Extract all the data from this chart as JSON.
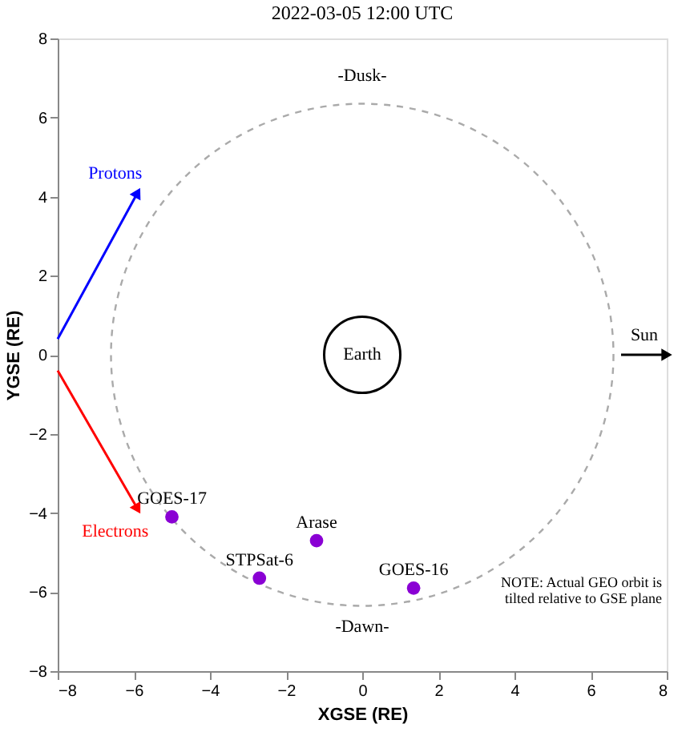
{
  "chart_data": {
    "type": "scatter",
    "title": "2022-03-05 12:00 UTC",
    "xlabel": "XGSE (RE)",
    "ylabel": "YGSE (RE)",
    "xlim": [
      -8,
      8
    ],
    "ylim": [
      -8,
      8
    ],
    "xticks": [
      -8,
      -6,
      -4,
      -2,
      0,
      2,
      4,
      6,
      8
    ],
    "yticks": [
      -8,
      -6,
      -4,
      -2,
      0,
      2,
      4,
      6,
      8
    ],
    "grid": false,
    "series": [
      {
        "color": "#8a00d4",
        "marker": "circle",
        "x": [
          -5.0,
          -2.7,
          -1.2,
          1.35
        ],
        "values": [
          -4.1,
          -5.65,
          -4.7,
          -5.9
        ]
      },
      {
        "type": "line",
        "name": "Protons",
        "color": "#0000ff",
        "line_style": "solid",
        "marker": "triangle",
        "x": [
          -8,
          -5.9
        ],
        "values": [
          0.4,
          4.1
        ]
      },
      {
        "type": "line",
        "name": "Electrons",
        "color": "#ff0000",
        "line_style": "solid",
        "marker": "triangle",
        "x": [
          -8,
          -5.9
        ],
        "values": [
          -0.4,
          -3.9
        ]
      },
      {
        "type": "line",
        "name": "Sun",
        "color": "#000000",
        "line_style": "solid",
        "marker": "triangle",
        "x": [
          6.8,
          8
        ],
        "values": [
          0,
          0
        ]
      }
    ],
    "annotations": [
      {
        "text": "GOES-17",
        "x": -5.0,
        "y": -4.1
      },
      {
        "text": "STPSat-6",
        "x": -2.7,
        "y": -5.65
      },
      {
        "text": "Arase",
        "x": -1.2,
        "y": -4.7
      },
      {
        "text": "GOES-16",
        "x": 1.35,
        "y": -5.9
      },
      "Earth",
      "-Dusk-",
      "-Dawn-",
      "NOTE: Actual GEO orbit is\ntilted relative to GSE plane"
    ]
  }
}
